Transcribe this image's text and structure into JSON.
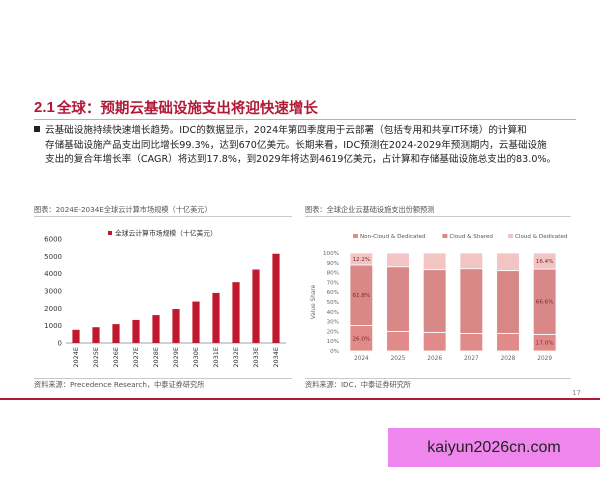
{
  "section": {
    "number": "2.1",
    "title": "全球：预期云基础设施支出将迎快速增长"
  },
  "bullet": {
    "line1": "云基础设施持续快速增长趋势。IDC的数据显示，2024年第四季度用于云部署（包括专用和共享IT环境）的计算和",
    "line2": "存储基础设施产品支出同比增长99.3%，达到670亿美元。长期来看，IDC预测在2024-2029年预测期内，云基础设施",
    "line3": "支出的复合年增长率（CAGR）将达到17.8%，到2029年将达到4619亿美元，占计算和存储基础设施总支出的83.0%。"
  },
  "left_panel": {
    "caption": "图表：2024E-2034E全球云计算市场规模（十亿美元）",
    "source": "资料来源：Precedence Research，中泰证券研究所"
  },
  "right_panel": {
    "caption": "图表：全球企业云基础设施支出份额预测",
    "source": "资料来源：IDC，中泰证券研究所"
  },
  "page_number": "17",
  "watermark": "kaiyun2026cn.com",
  "colors": {
    "accent": "#b01a36",
    "bar": "#c0192f",
    "non_cloud": "#e08a8a",
    "cloud_shared": "#d98888",
    "cloud_dedicated": "#f2c4c4"
  },
  "chart_data": [
    {
      "type": "bar",
      "title": "",
      "legend": [
        "全球云计算市场规模（十亿美元）"
      ],
      "legend_position": "top-right",
      "categories": [
        "2024E",
        "2025E",
        "2026E",
        "2027E",
        "2028E",
        "2029E",
        "2030E",
        "2031E",
        "2032E",
        "2033E",
        "2034E"
      ],
      "series": [
        {
          "name": "全球云计算市场规模（十亿美元）",
          "values": [
            760,
            910,
            1090,
            1330,
            1610,
            1960,
            2390,
            2890,
            3510,
            4240,
            5150
          ]
        }
      ],
      "ylim": [
        0,
        6000
      ],
      "yticks": [
        "0",
        "1000",
        "2000",
        "3000",
        "4000",
        "5000",
        "6000"
      ],
      "grid": false
    },
    {
      "type": "bar",
      "stacked": true,
      "title": "",
      "ylabel": "Value Share",
      "legend": [
        "Non-Cloud & Dedicated",
        "Cloud & Shared",
        "Cloud & Dedicated"
      ],
      "legend_position": "top",
      "categories": [
        "2024",
        "2025",
        "2026",
        "2027",
        "2028",
        "2029"
      ],
      "series": [
        {
          "name": "Non-Cloud & Dedicated",
          "values": [
            26.0,
            20.0,
            19.0,
            18.0,
            18.0,
            17.0
          ]
        },
        {
          "name": "Cloud & Shared",
          "values": [
            61.8,
            66.0,
            64.0,
            66.0,
            64.0,
            66.6
          ]
        },
        {
          "name": "Cloud & Dedicated",
          "values": [
            12.2,
            14.0,
            17.0,
            16.0,
            18.0,
            16.4
          ]
        }
      ],
      "data_labels": {
        "first": [
          "26.0%",
          "61.8%",
          "12.2%"
        ],
        "last": [
          "17.0%",
          "66.6%",
          "16.4%"
        ]
      },
      "ylim": [
        0,
        100
      ],
      "yticks": [
        "0%",
        "10%",
        "20%",
        "30%",
        "40%",
        "50%",
        "60%",
        "70%",
        "80%",
        "90%",
        "100%"
      ],
      "grid": false
    }
  ]
}
